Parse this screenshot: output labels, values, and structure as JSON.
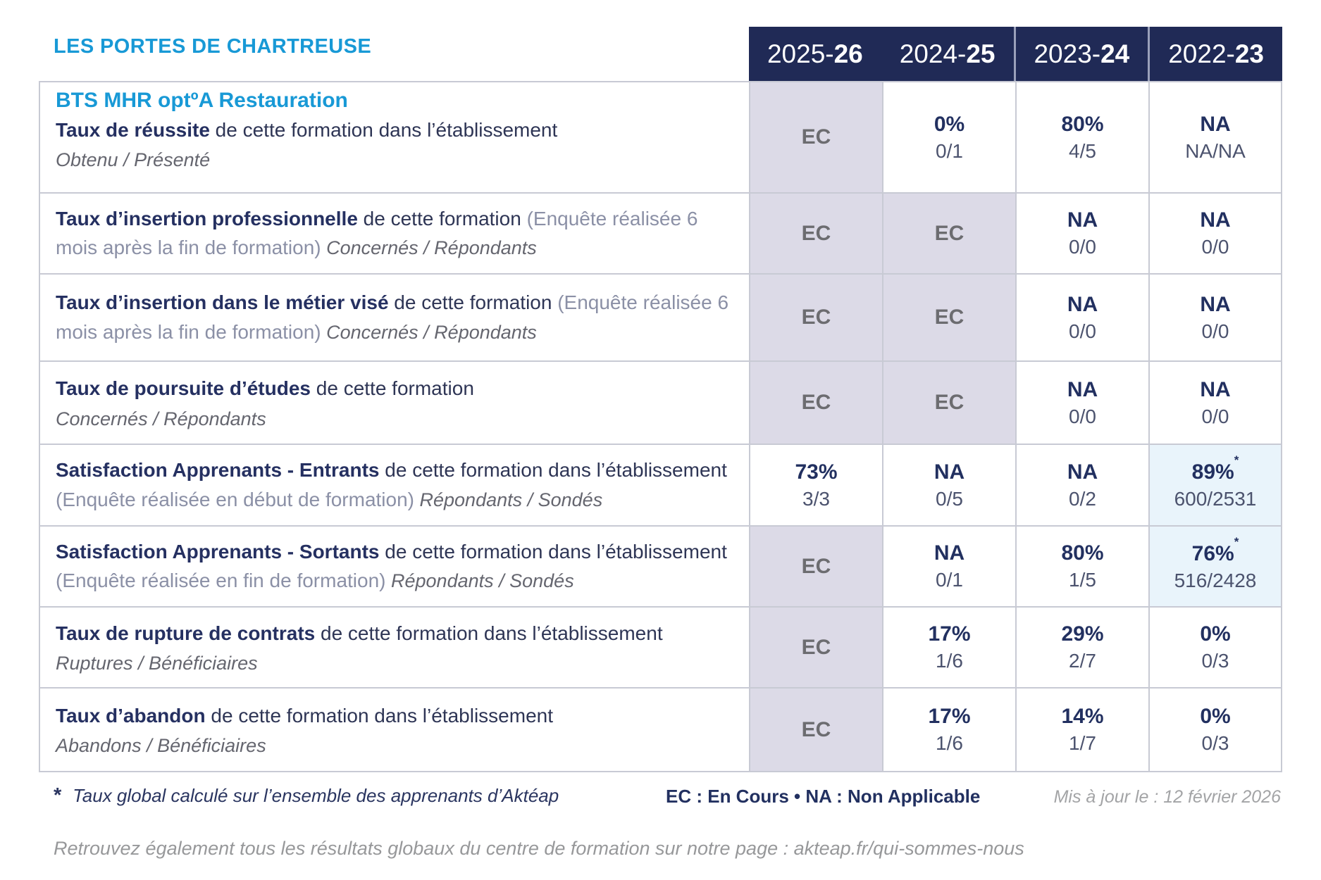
{
  "header": {
    "org_name": "LES PORTES DE CHARTREUSE",
    "columns": [
      {
        "prefix": "2025-",
        "bold": "26"
      },
      {
        "prefix": "2024-",
        "bold": "25"
      },
      {
        "prefix": "2023-",
        "bold": "24"
      },
      {
        "prefix": "2022-",
        "bold": "23"
      }
    ]
  },
  "program_title": "BTS MHR optºA Restauration",
  "rows": [
    {
      "has_program_title": true,
      "label_bold": "Taux de réussite",
      "label_regular": " de cette formation dans l’établissement",
      "label_paren": "",
      "label_sub": "Obtenu / Présenté",
      "sub_inline": false,
      "cells": [
        {
          "type": "ec",
          "main": "EC"
        },
        {
          "type": "value",
          "main": "0%",
          "sub": "0/1"
        },
        {
          "type": "value",
          "main": "80%",
          "sub": "4/5"
        },
        {
          "type": "value",
          "main": "NA",
          "sub": "NA/NA"
        }
      ]
    },
    {
      "label_bold": "Taux d’insertion professionnelle",
      "label_regular": " de cette formation ",
      "label_paren": "(Enquête réalisée 6 mois après la fin de formation)",
      "label_sub": " Concernés / Répondants",
      "sub_inline": true,
      "cells": [
        {
          "type": "ec",
          "main": "EC"
        },
        {
          "type": "ec",
          "main": "EC"
        },
        {
          "type": "value",
          "main": "NA",
          "sub": "0/0"
        },
        {
          "type": "value",
          "main": "NA",
          "sub": "0/0"
        }
      ]
    },
    {
      "label_bold": "Taux d’insertion dans le métier visé",
      "label_regular": " de cette formation ",
      "label_paren": "(Enquête réalisée 6 mois après la fin de formation)",
      "label_sub": " Concernés / Répondants",
      "sub_inline": true,
      "cells": [
        {
          "type": "ec",
          "main": "EC"
        },
        {
          "type": "ec",
          "main": "EC"
        },
        {
          "type": "value",
          "main": "NA",
          "sub": "0/0"
        },
        {
          "type": "value",
          "main": "NA",
          "sub": "0/0"
        }
      ]
    },
    {
      "label_bold": "Taux de poursuite d’études",
      "label_regular": " de cette formation",
      "label_paren": "",
      "label_sub": "Concernés / Répondants",
      "sub_inline": false,
      "cells": [
        {
          "type": "ec",
          "main": "EC"
        },
        {
          "type": "ec",
          "main": "EC"
        },
        {
          "type": "value",
          "main": "NA",
          "sub": "0/0"
        },
        {
          "type": "value",
          "main": "NA",
          "sub": "0/0"
        }
      ]
    },
    {
      "label_bold": "Satisfaction Apprenants - Entrants",
      "label_regular": " de cette formation dans l’établissement ",
      "label_paren": "(Enquête réalisée en début de formation)",
      "label_sub": " Répondants / Sondés",
      "sub_inline": true,
      "cells": [
        {
          "type": "value",
          "main": "73%",
          "sub": "3/3"
        },
        {
          "type": "value",
          "main": "NA",
          "sub": "0/5"
        },
        {
          "type": "value",
          "main": "NA",
          "sub": "0/2"
        },
        {
          "type": "highlight",
          "main": "89%",
          "sup": "*",
          "sub": "600/2531"
        }
      ]
    },
    {
      "label_bold": "Satisfaction Apprenants - Sortants",
      "label_regular": " de cette formation dans l’établissement ",
      "label_paren": "(Enquête réalisée en fin de formation)",
      "label_sub": " Répondants / Sondés",
      "sub_inline": true,
      "cells": [
        {
          "type": "ec",
          "main": "EC"
        },
        {
          "type": "value",
          "main": "NA",
          "sub": "0/1"
        },
        {
          "type": "value",
          "main": "80%",
          "sub": "1/5"
        },
        {
          "type": "highlight",
          "main": "76%",
          "sup": "*",
          "sub": "516/2428"
        }
      ]
    },
    {
      "label_bold": "Taux de rupture de contrats",
      "label_regular": " de cette formation dans l’établissement",
      "label_paren": "",
      "label_sub": "Ruptures / Bénéficiaires",
      "sub_inline": false,
      "cells": [
        {
          "type": "ec",
          "main": "EC"
        },
        {
          "type": "value",
          "main": "17%",
          "sub": "1/6"
        },
        {
          "type": "value",
          "main": "29%",
          "sub": "2/7"
        },
        {
          "type": "value",
          "main": "0%",
          "sub": "0/3"
        }
      ]
    },
    {
      "label_bold": "Taux d’abandon",
      "label_regular": " de cette formation dans l’établissement",
      "label_paren": "",
      "label_sub": "Abandons / Bénéficiaires",
      "sub_inline": false,
      "cells": [
        {
          "type": "ec",
          "main": "EC"
        },
        {
          "type": "value",
          "main": "17%",
          "sub": "1/6"
        },
        {
          "type": "value",
          "main": "14%",
          "sub": "1/7"
        },
        {
          "type": "value",
          "main": "0%",
          "sub": "0/3"
        }
      ]
    }
  ],
  "footer": {
    "note_star": "*",
    "note_text": "Taux global calculé sur l’ensemble des apprenants d’Aktéap",
    "legend": "EC : En Cours  •  NA : Non Applicable",
    "updated": "Mis à jour le : 12 février 2026",
    "bottom_line": "Retrouvez également tous les résultats globaux du centre de formation sur notre page : akteap.fr/qui-sommes-nous"
  },
  "colors": {
    "navy_header": "#202a56",
    "accent_cyan": "#1899d6",
    "ec_cell_bg": "#dcdae7",
    "highlight_cell_bg": "#e9f4fb",
    "grid_border": "#c8cad4"
  }
}
